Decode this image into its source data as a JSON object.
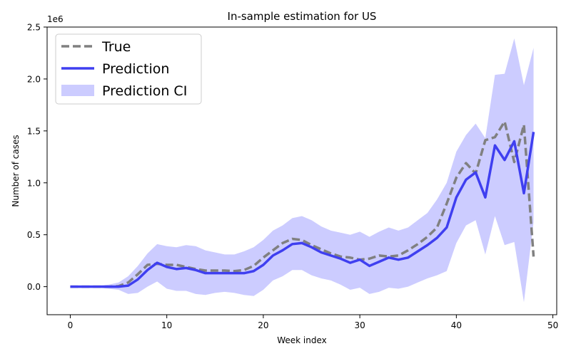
{
  "chart_data": {
    "type": "line",
    "title": "In-sample estimation for US",
    "xlabel": "Week index",
    "ylabel": "Number of cases",
    "y_scale_label": "1e6",
    "xlim": [
      -2.4,
      50.4
    ],
    "ylim": [
      -0.27,
      2.5
    ],
    "x_ticks": [
      0,
      10,
      20,
      30,
      40,
      50
    ],
    "y_ticks": [
      0.0,
      0.5,
      1.0,
      1.5,
      2.0,
      2.5
    ],
    "y_tick_labels": [
      "0.0",
      "0.5",
      "1.0",
      "1.5",
      "2.0",
      "2.5"
    ],
    "grid": false,
    "legend_position": "top-left",
    "x": [
      0,
      1,
      2,
      3,
      4,
      5,
      6,
      7,
      8,
      9,
      10,
      11,
      12,
      13,
      14,
      15,
      16,
      17,
      18,
      19,
      20,
      21,
      22,
      23,
      24,
      25,
      26,
      27,
      28,
      29,
      30,
      31,
      32,
      33,
      34,
      35,
      36,
      37,
      38,
      39,
      40,
      41,
      42,
      43,
      44,
      45,
      46,
      47,
      48
    ],
    "series": [
      {
        "name": "True",
        "style": "dashed",
        "color": "#808080",
        "values": [
          0.0,
          0.0,
          0.0,
          0.0,
          0.0,
          0.005,
          0.04,
          0.12,
          0.21,
          0.22,
          0.21,
          0.21,
          0.19,
          0.17,
          0.155,
          0.155,
          0.155,
          0.15,
          0.16,
          0.2,
          0.28,
          0.35,
          0.42,
          0.46,
          0.45,
          0.4,
          0.36,
          0.32,
          0.29,
          0.28,
          0.26,
          0.27,
          0.3,
          0.29,
          0.3,
          0.35,
          0.41,
          0.48,
          0.57,
          0.8,
          1.05,
          1.19,
          1.09,
          1.41,
          1.44,
          1.59,
          1.2,
          1.56,
          0.29
        ]
      },
      {
        "name": "Prediction",
        "style": "solid",
        "color": "#3f3ff0",
        "values": [
          0.0,
          0.0,
          0.0,
          0.0,
          0.0,
          0.0,
          0.01,
          0.07,
          0.16,
          0.23,
          0.19,
          0.17,
          0.18,
          0.16,
          0.13,
          0.13,
          0.13,
          0.13,
          0.13,
          0.15,
          0.21,
          0.3,
          0.35,
          0.41,
          0.42,
          0.38,
          0.33,
          0.3,
          0.27,
          0.23,
          0.26,
          0.2,
          0.24,
          0.28,
          0.26,
          0.28,
          0.34,
          0.4,
          0.47,
          0.57,
          0.86,
          1.03,
          1.1,
          0.86,
          1.36,
          1.22,
          1.4,
          0.9,
          1.49
        ]
      },
      {
        "name": "Prediction CI",
        "style": "band",
        "color": "#ccccff",
        "lower": [
          0.0,
          0.0,
          0.0,
          -0.01,
          -0.02,
          -0.03,
          -0.07,
          -0.06,
          0.0,
          0.05,
          -0.02,
          -0.04,
          -0.04,
          -0.07,
          -0.08,
          -0.06,
          -0.05,
          -0.06,
          -0.08,
          -0.09,
          -0.03,
          0.06,
          0.1,
          0.16,
          0.16,
          0.11,
          0.08,
          0.06,
          0.02,
          -0.03,
          -0.01,
          -0.07,
          -0.05,
          -0.01,
          -0.02,
          0.0,
          0.04,
          0.08,
          0.11,
          0.15,
          0.42,
          0.59,
          0.64,
          0.31,
          0.68,
          0.4,
          0.43,
          -0.15,
          0.62
        ],
        "upper": [
          0.0,
          0.0,
          0.0,
          0.01,
          0.02,
          0.04,
          0.1,
          0.2,
          0.32,
          0.41,
          0.39,
          0.38,
          0.4,
          0.39,
          0.35,
          0.33,
          0.31,
          0.31,
          0.34,
          0.38,
          0.45,
          0.54,
          0.59,
          0.66,
          0.68,
          0.64,
          0.58,
          0.54,
          0.52,
          0.5,
          0.53,
          0.48,
          0.53,
          0.57,
          0.54,
          0.57,
          0.64,
          0.71,
          0.84,
          1.0,
          1.3,
          1.46,
          1.57,
          1.43,
          2.04,
          2.05,
          2.39,
          1.94,
          2.3
        ]
      }
    ]
  }
}
